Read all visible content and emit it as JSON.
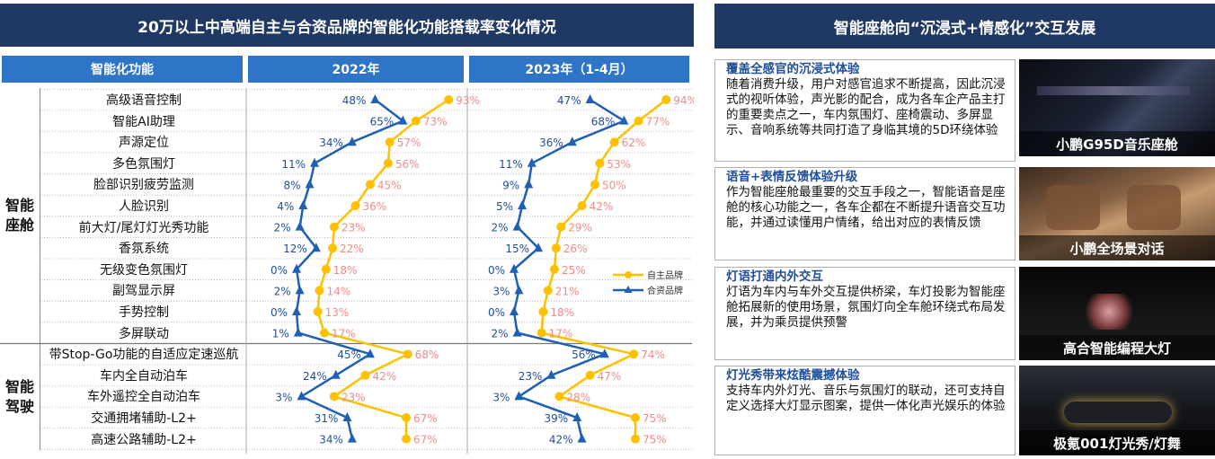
{
  "left_title": "20万以上中高端自主与合资品牌的智能化功能搭载率变化情况",
  "right_title": "智能座舱向“沉浸式+情感化”交互发展",
  "table_header": {
    "feature": "智能化功能",
    "year1": "2022年",
    "year2": "2023年（1-4月）"
  },
  "groups": [
    {
      "line1": "智能",
      "line2": "座舱"
    },
    {
      "line1": "智能",
      "line2": "驾驶"
    }
  ],
  "chart_data": {
    "type": "line",
    "categories": [
      "高级语音控制",
      "智能AI助理",
      "声源定位",
      "多色氛围灯",
      "脸部识别疲劳监测",
      "人脸识别",
      "前大灯/尾灯灯光秀功能",
      "香氛系统",
      "无级变色氛围灯",
      "副驾显示屏",
      "手势控制",
      "多屏联动",
      "带Stop-Go功能的自适应定速巡航",
      "车内全自动泊车",
      "车外遥控全自动泊车",
      "交通拥堵辅助-L2+",
      "高速公路辅助-L2+"
    ],
    "panels": [
      {
        "name": "2022年",
        "xlim": [
          0,
          100
        ],
        "series": [
          {
            "name": "自主品牌",
            "color": "#ffc000",
            "marker": "circle",
            "values": [
              93,
              73,
              57,
              56,
              45,
              36,
              23,
              22,
              18,
              14,
              13,
              17,
              68,
              42,
              23,
              67,
              67
            ]
          },
          {
            "name": "合资品牌",
            "color": "#1f5fb4",
            "marker": "triangle",
            "values": [
              48,
              65,
              34,
              11,
              8,
              4,
              2,
              12,
              0,
              2,
              0,
              1,
              45,
              24,
              3,
              31,
              34
            ]
          }
        ]
      },
      {
        "name": "2023年（1-4月）",
        "xlim": [
          0,
          100
        ],
        "series": [
          {
            "name": "自主品牌",
            "color": "#ffc000",
            "marker": "circle",
            "values": [
              94,
              77,
              62,
              53,
              50,
              42,
              29,
              26,
              25,
              21,
              18,
              17,
              74,
              47,
              28,
              75,
              75
            ]
          },
          {
            "name": "合资品牌",
            "color": "#1f5fb4",
            "marker": "triangle",
            "values": [
              47,
              68,
              36,
              11,
              9,
              5,
              2,
              15,
              0,
              3,
              0,
              2,
              56,
              23,
              3,
              39,
              42
            ]
          }
        ]
      }
    ],
    "legend": [
      "自主品牌",
      "合资品牌"
    ],
    "legend_position": "right",
    "value_suffix": "%"
  },
  "cards": [
    {
      "title": "覆盖全感官的沉浸式体验",
      "body": "随着消费升级，用户对感官追求不断提高，因此沉浸式的视听体验，声光影的配合，成为各车企产品主打的重要卖点之一，车内氛围灯、座椅震动、多屏显示、音响系统等共同打造了身临其境的5D环绕体验",
      "caption": "小鹏G95D音乐座舱"
    },
    {
      "title": "语音+表情反馈体验升级",
      "body": "作为智能座舱最重要的交互手段之一，智能语音是座舱的核心功能之一，各车企都在不断提升语音交互功能，并通过读懂用户情绪，给出对应的表情反馈",
      "caption": "小鹏全场景对话"
    },
    {
      "title": "灯语打通内外交互",
      "body": "灯语为车内与车外交互提供桥梁，车灯投影为智能座舱拓展新的使用场景，氛围灯向全车舱环绕式布局发展，并为乘员提供预警",
      "caption": "高合智能编程大灯"
    },
    {
      "title": "灯光秀带来炫酷震撼体验",
      "body": "支持车内外灯光、音乐与氛围灯的联动，还可支持自定义选择大灯显示图案，提供一体化声光娱乐的体验",
      "caption": "极氪001灯光秀/灯舞"
    }
  ]
}
